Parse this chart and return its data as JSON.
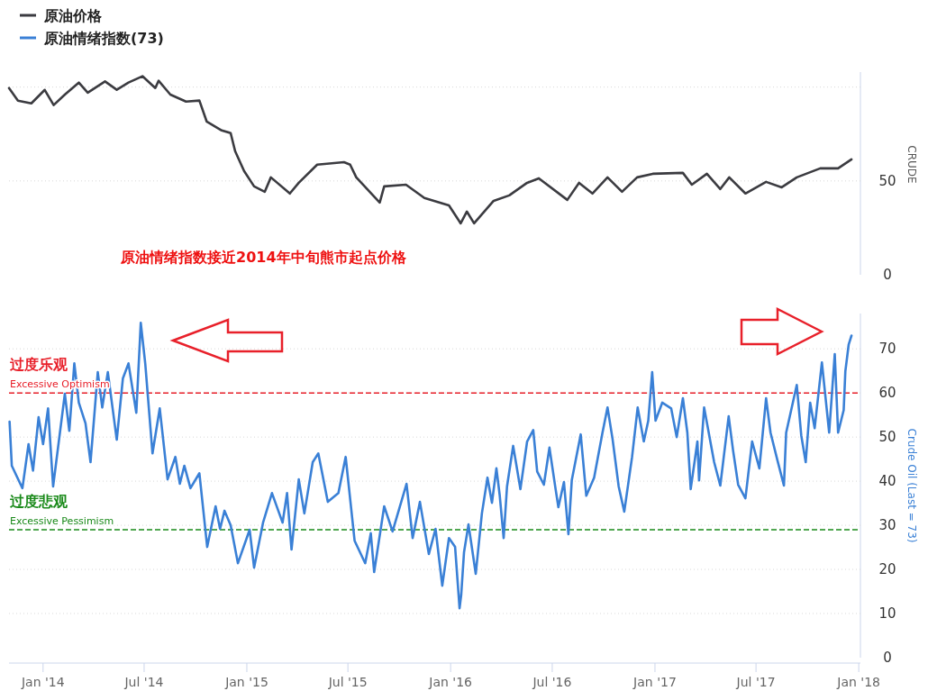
{
  "chart_data": [
    {
      "type": "line",
      "ylabel": "CRUDE",
      "annotations": [
        "原油情绪指数接近2014年中旬熊市起点价格"
      ],
      "xlim": [
        "2013-11-01",
        "2018-01-04"
      ],
      "ylim": [
        0,
        108
      ],
      "yticks": [
        0,
        50,
        {
          "value": 100,
          "label": null
        }
      ],
      "grid": "y",
      "legend": "top left",
      "tick_labels": "y",
      "series": [
        {
          "name": "原油价格",
          "color": "#3b3b40",
          "x": [
            "2013-11-01",
            "2013-11-17",
            "2013-12-11",
            "2014-01-04",
            "2014-01-20",
            "2014-02-09",
            "2014-03-06",
            "2014-03-22",
            "2014-04-22",
            "2014-05-13",
            "2014-06-03",
            "2014-06-28",
            "2014-07-21",
            "2014-07-27",
            "2014-08-17",
            "2014-09-14",
            "2014-10-08",
            "2014-10-21",
            "2014-11-17",
            "2014-12-03",
            "2014-12-11",
            "2014-12-27",
            "2015-01-14",
            "2015-02-02",
            "2015-02-13",
            "2015-03-19",
            "2015-04-04",
            "2015-05-07",
            "2015-06-24",
            "2015-07-05",
            "2015-07-16",
            "2015-08-27",
            "2015-09-04",
            "2015-10-13",
            "2015-11-15",
            "2015-12-29",
            "2016-01-19",
            "2016-01-30",
            "2016-02-12",
            "2016-03-18",
            "2016-04-15",
            "2016-05-17",
            "2016-06-07",
            "2016-07-28",
            "2016-08-18",
            "2016-09-11",
            "2016-10-08",
            "2016-11-03",
            "2016-11-30",
            "2016-12-28",
            "2017-02-20",
            "2017-03-08",
            "2017-04-04",
            "2017-04-28",
            "2017-05-14",
            "2017-06-12",
            "2017-07-19",
            "2017-08-16",
            "2017-09-12",
            "2017-10-24",
            "2017-11-25",
            "2017-12-19"
          ],
          "values": [
            99.5,
            92.8,
            91.3,
            98.5,
            90.4,
            96,
            102.4,
            97,
            103,
            98.6,
            102.4,
            105.8,
            99.5,
            103.4,
            96,
            92.3,
            92.8,
            81.7,
            76.9,
            75.5,
            65.9,
            55.3,
            47.1,
            44.2,
            51.9,
            43.3,
            49,
            58.7,
            60,
            58.7,
            51.9,
            38.5,
            47.1,
            48,
            40.9,
            37,
            27.4,
            33.7,
            27.4,
            39.4,
            42.3,
            49,
            51.4,
            39.9,
            49,
            43.3,
            51.9,
            44.2,
            51.9,
            53.8,
            54.3,
            48,
            53.8,
            45.7,
            51.9,
            43.3,
            49.5,
            46.6,
            51.9,
            56.7,
            56.7,
            61.5
          ]
        }
      ]
    },
    {
      "type": "line",
      "ylabel": "Crude Oil (Last = 73)",
      "xlim": [
        "2013-11-01",
        "2018-01-04"
      ],
      "xticks": [
        {
          "value": "2014-01-01",
          "label": "Jan '14"
        },
        {
          "value": "2014-07-01",
          "label": "Jul '14"
        },
        {
          "value": "2015-01-01",
          "label": "Jan '15"
        },
        {
          "value": "2015-07-01",
          "label": "Jul '15"
        },
        {
          "value": "2016-01-01",
          "label": "Jan '16"
        },
        {
          "value": "2016-07-01",
          "label": "Jul '16"
        },
        {
          "value": "2017-01-01",
          "label": "Jan '17"
        },
        {
          "value": "2017-07-01",
          "label": "Jul '17"
        },
        {
          "value": "2018-01-01",
          "label": "Jan '18"
        }
      ],
      "ylim": [
        0,
        78
      ],
      "yticks": [
        0,
        10,
        20,
        30,
        40,
        50,
        60,
        70
      ],
      "grid": "y",
      "legend": "top left",
      "ref_lines": [
        {
          "axis": "y",
          "value": 60,
          "label": "Excessive Optimism",
          "color": "#e8202a",
          "line_style": "dashed"
        },
        {
          "axis": "y",
          "value": 29,
          "label": "Excessive Pessimism",
          "color": "#1a8a1a",
          "line_style": "dashed"
        }
      ],
      "annotations": [
        "过度乐观",
        "过度悲观"
      ],
      "series": [
        {
          "name": "原油情绪指数(73)",
          "color": "#3a80d6",
          "x": [
            "2013-11-02",
            "2013-11-06",
            "2013-11-25",
            "2013-12-06",
            "2013-12-14",
            "2013-12-24",
            "2014-01-01",
            "2014-01-10",
            "2014-01-19",
            "2014-02-09",
            "2014-02-17",
            "2014-02-26",
            "2014-03-06",
            "2014-03-18",
            "2014-03-27",
            "2014-04-09",
            "2014-04-17",
            "2014-04-27",
            "2014-05-13",
            "2014-05-24",
            "2014-06-03",
            "2014-06-17",
            "2014-06-25",
            "2014-07-03",
            "2014-07-16",
            "2014-07-29",
            "2014-08-12",
            "2014-08-26",
            "2014-09-03",
            "2014-09-11",
            "2014-09-22",
            "2014-10-08",
            "2014-10-22",
            "2014-11-06",
            "2014-11-14",
            "2014-11-22",
            "2014-12-03",
            "2014-12-16",
            "2015-01-06",
            "2015-01-14",
            "2015-01-30",
            "2015-02-15",
            "2015-03-06",
            "2015-03-14",
            "2015-03-22",
            "2015-04-04",
            "2015-04-14",
            "2015-04-29",
            "2015-05-09",
            "2015-05-26",
            "2015-06-14",
            "2015-06-27",
            "2015-07-13",
            "2015-08-01",
            "2015-08-11",
            "2015-08-17",
            "2015-09-04",
            "2015-09-19",
            "2015-10-14",
            "2015-10-25",
            "2015-11-07",
            "2015-11-23",
            "2015-12-05",
            "2015-12-17",
            "2015-12-29",
            "2016-01-09",
            "2016-01-17",
            "2016-01-20",
            "2016-01-25",
            "2016-02-02",
            "2016-02-15",
            "2016-02-26",
            "2016-03-07",
            "2016-03-15",
            "2016-03-23",
            "2016-03-29",
            "2016-04-05",
            "2016-04-11",
            "2016-04-22",
            "2016-05-05",
            "2016-05-17",
            "2016-05-28",
            "2016-06-04",
            "2016-06-16",
            "2016-06-26",
            "2016-07-07",
            "2016-07-12",
            "2016-07-22",
            "2016-07-30",
            "2016-08-05",
            "2016-08-21",
            "2016-08-31",
            "2016-09-14",
            "2016-09-29",
            "2016-10-08",
            "2016-10-17",
            "2016-10-28",
            "2016-11-07",
            "2016-11-21",
            "2016-12-01",
            "2016-12-12",
            "2016-12-20",
            "2016-12-27",
            "2017-01-02",
            "2017-01-14",
            "2017-01-30",
            "2017-02-09",
            "2017-02-20",
            "2017-02-28",
            "2017-03-06",
            "2017-03-18",
            "2017-03-21",
            "2017-03-30",
            "2017-04-17",
            "2017-04-28",
            "2017-05-13",
            "2017-05-21",
            "2017-05-30",
            "2017-06-12",
            "2017-06-24",
            "2017-07-07",
            "2017-07-19",
            "2017-07-27",
            "2017-08-08",
            "2017-08-20",
            "2017-08-24",
            "2017-09-12",
            "2017-09-20",
            "2017-09-28",
            "2017-10-06",
            "2017-10-14",
            "2017-10-27",
            "2017-11-09",
            "2017-11-19",
            "2017-11-25",
            "2017-12-05",
            "2017-12-08",
            "2017-12-14",
            "2017-12-19"
          ],
          "values": [
            53.5,
            43.5,
            38.4,
            48.4,
            42.4,
            54.5,
            48.4,
            56.5,
            38.8,
            59.8,
            51.4,
            66.7,
            57.8,
            53.1,
            44.3,
            64.7,
            56.7,
            64.7,
            49.4,
            63.3,
            66.7,
            55.5,
            75.9,
            66.7,
            46.3,
            56.5,
            40.4,
            45.5,
            39.4,
            43.5,
            38.4,
            41.8,
            25.1,
            34.3,
            29.2,
            33.3,
            30,
            21.4,
            29,
            20.4,
            30.6,
            37.3,
            30.6,
            37.3,
            24.5,
            40.4,
            32.7,
            44.3,
            46.3,
            35.3,
            37.3,
            45.5,
            26.5,
            21.4,
            28.2,
            19.4,
            34.3,
            28.6,
            39.4,
            27.1,
            35.3,
            23.5,
            29.2,
            16.3,
            27.1,
            25.1,
            11.2,
            14.3,
            23.9,
            30.2,
            19,
            32.7,
            40.8,
            35.1,
            42.9,
            36.7,
            27.1,
            38.8,
            48,
            38.2,
            49,
            51.6,
            42.2,
            39.2,
            47.6,
            38.2,
            34.1,
            39.8,
            28,
            40.2,
            50.6,
            36.7,
            40.8,
            51,
            56.7,
            49.6,
            38.8,
            33.1,
            45.5,
            56.7,
            49,
            53.7,
            64.7,
            53.7,
            57.8,
            56.5,
            50,
            58.8,
            51,
            38.2,
            49,
            40.2,
            56.7,
            44.3,
            39,
            54.7,
            46.9,
            39.2,
            36.1,
            49,
            42.9,
            58.8,
            51,
            44.9,
            39,
            51,
            61.8,
            50.4,
            44.3,
            57.8,
            52,
            66.9,
            51,
            68.8,
            51,
            56.1,
            64.9,
            71,
            73
          ]
        }
      ]
    }
  ]
}
